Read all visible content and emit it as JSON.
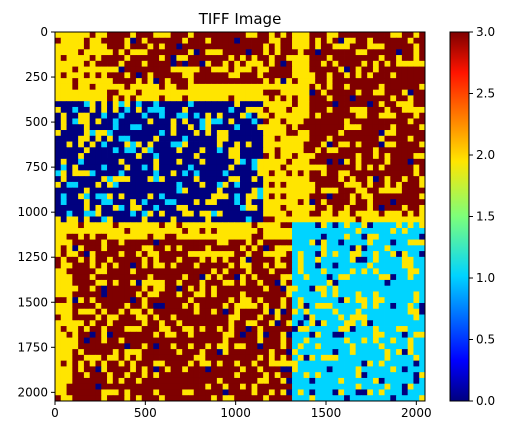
{
  "chart_data": {
    "type": "heatmap",
    "title": "TIFF Image",
    "xlabel": "",
    "ylabel": "",
    "xlim": [
      0,
      2048
    ],
    "ylim": [
      2048,
      0
    ],
    "x_ticks": [
      0,
      500,
      1000,
      1500,
      2000
    ],
    "y_ticks": [
      0,
      250,
      500,
      750,
      1000,
      1250,
      1500,
      1750,
      2000
    ],
    "colorbar": {
      "colormap": "jet",
      "range": [
        0,
        3
      ],
      "ticks": [
        "0.0",
        "0.5",
        "1.0",
        "1.5",
        "2.0",
        "2.5",
        "3.0"
      ]
    },
    "value_colors": {
      "0": "#00007f",
      "1": "#00d4ff",
      "2": "#ffe500",
      "3": "#7f0000"
    },
    "grid": false,
    "legend": "colorbar-right",
    "regions": [
      {
        "x": [
          0,
          2048
        ],
        "y": [
          0,
          2048
        ],
        "dominant_value": 2
      },
      {
        "x": [
          300,
          1300
        ],
        "y": [
          0,
          280
        ],
        "dominant_value": 3
      },
      {
        "x": [
          1400,
          2048
        ],
        "y": [
          0,
          1000
        ],
        "dominant_value": 3
      },
      {
        "x": [
          0,
          1150
        ],
        "y": [
          380,
          1050
        ],
        "dominant_value": 0
      },
      {
        "x": [
          100,
          1400
        ],
        "y": [
          1150,
          2048
        ],
        "dominant_value": 3
      },
      {
        "x": [
          1300,
          2048
        ],
        "y": [
          1050,
          2048
        ],
        "dominant_value": 1
      }
    ]
  }
}
